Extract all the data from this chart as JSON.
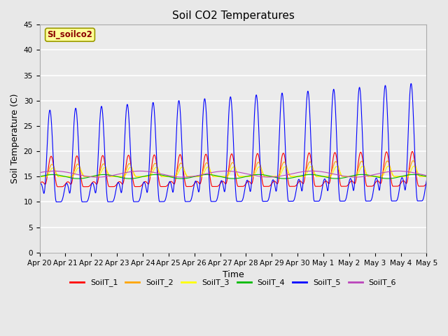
{
  "title": "Soil CO2 Temperatures",
  "xlabel": "Time",
  "ylabel": "Soil Temperature (C)",
  "ylim": [
    0,
    45
  ],
  "yticks": [
    0,
    5,
    10,
    15,
    20,
    25,
    30,
    35,
    40,
    45
  ],
  "annotation_text": "SI_soilco2",
  "annotation_color": "#8B0000",
  "annotation_bg": "#FFFF99",
  "series_colors": {
    "SoilT_1": "#FF0000",
    "SoilT_2": "#FFA500",
    "SoilT_3": "#FFFF00",
    "SoilT_4": "#00BB00",
    "SoilT_5": "#0000FF",
    "SoilT_6": "#BB44BB"
  },
  "background_color": "#E8E8E8",
  "plot_bg": "#EBEBEB",
  "n_days": 15,
  "points_per_day": 144,
  "tick_labels": [
    "Apr 20",
    "Apr 21",
    "Apr 22",
    "Apr 23",
    "Apr 24",
    "Apr 25",
    "Apr 26",
    "Apr 27",
    "Apr 28",
    "Apr 29",
    "Apr 30",
    "May 1",
    "May 2",
    "May 3",
    "May 4",
    "May 5"
  ],
  "linewidth": 0.8,
  "title_fontsize": 11,
  "axis_label_fontsize": 9,
  "tick_fontsize": 7.5
}
